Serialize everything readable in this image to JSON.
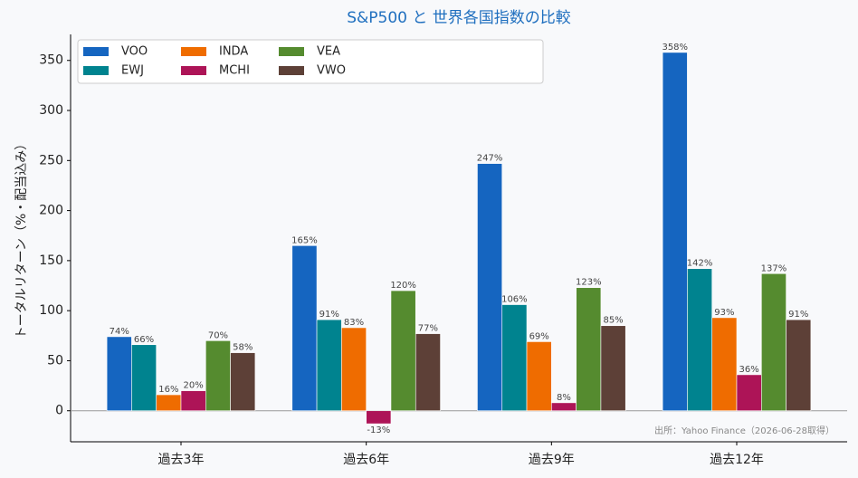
{
  "chart_data": {
    "type": "bar",
    "title": "S&P500 と 世界各国指数の比較",
    "y_label": "トータルリターン（%・配当込み）",
    "annotation": "出所：Yahoo Finance（2026-06-28取得）",
    "categories": [
      "過去3年",
      "過去6年",
      "過去9年",
      "過去12年"
    ],
    "series": [
      {
        "name": "VOO",
        "color": "#1565c0",
        "values": [
          74,
          165,
          247,
          358
        ],
        "value_labels": [
          "74%",
          "165%",
          "247%",
          "358%"
        ]
      },
      {
        "name": "EWJ",
        "color": "#00838f",
        "values": [
          66,
          91,
          106,
          142
        ],
        "value_labels": [
          "66%",
          "91%",
          "106%",
          "142%"
        ]
      },
      {
        "name": "INDA",
        "color": "#ef6c00",
        "values": [
          16,
          83,
          69,
          93
        ],
        "value_labels": [
          "16%",
          "83%",
          "69%",
          "93%"
        ]
      },
      {
        "name": "MCHI",
        "color": "#ad1457",
        "values": [
          20,
          -13,
          8,
          36
        ],
        "value_labels": [
          "20%",
          "-13%",
          "8%",
          "36%"
        ]
      },
      {
        "name": "VEA",
        "color": "#558b2f",
        "values": [
          70,
          120,
          123,
          137
        ],
        "value_labels": [
          "70%",
          "120%",
          "123%",
          "137%"
        ]
      },
      {
        "name": "VWO",
        "color": "#5d4037",
        "values": [
          58,
          77,
          85,
          91
        ],
        "value_labels": [
          "58%",
          "77%",
          "85%",
          "91%"
        ]
      }
    ],
    "ylim": [
      -31,
      376
    ],
    "yticks": [
      0,
      50,
      100,
      150,
      200,
      250,
      300,
      350
    ],
    "legend": "upper left",
    "grid": false
  }
}
